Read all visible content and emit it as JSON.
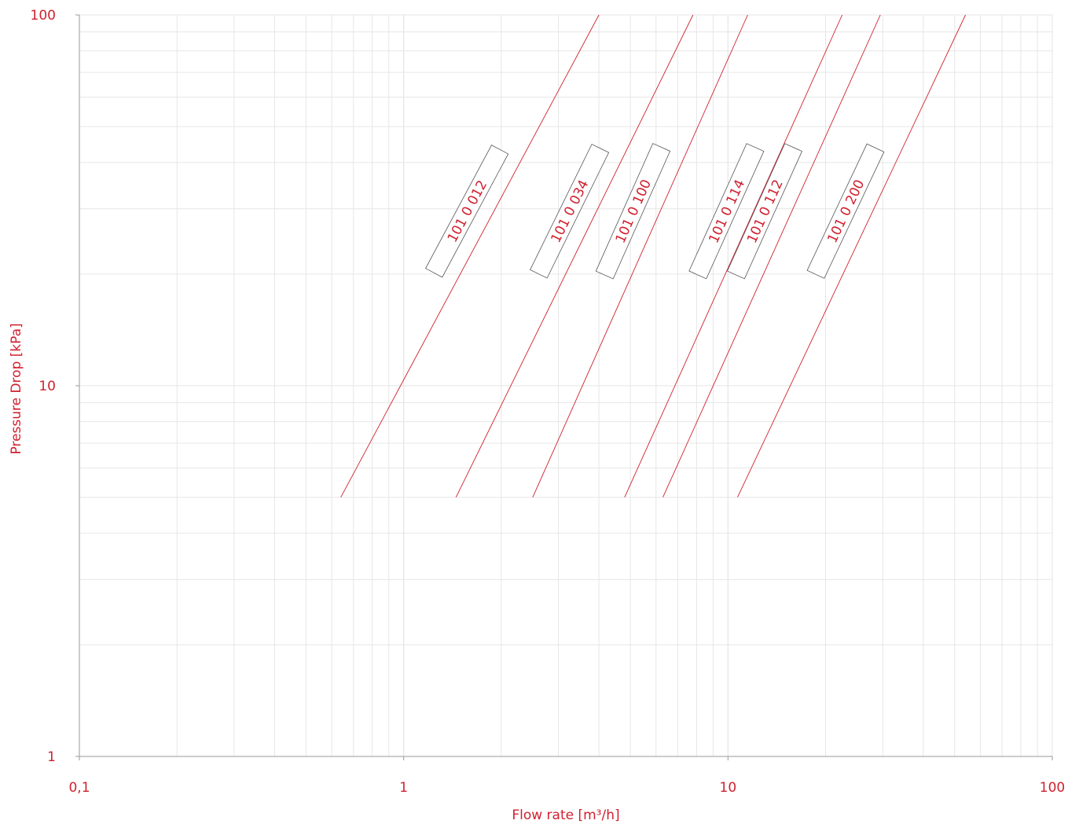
{
  "colors": {
    "accent": "#d0212f",
    "grid": "#e6e6e6",
    "axis": "#9a9a9a",
    "label_box": "#555555"
  },
  "chart_data": {
    "type": "line",
    "title": "",
    "xlabel": "Flow rate [m³/h]",
    "ylabel": "Pressure Drop [kPa]",
    "x_scale": "log",
    "y_scale": "log",
    "xlim": [
      0.1,
      100
    ],
    "ylim": [
      1,
      100
    ],
    "x_ticks": [
      {
        "value": 0.1,
        "label": "0,1"
      },
      {
        "value": 1,
        "label": "1"
      },
      {
        "value": 10,
        "label": "10"
      },
      {
        "value": 100,
        "label": "100"
      }
    ],
    "y_ticks": [
      {
        "value": 1,
        "label": "1"
      },
      {
        "value": 10,
        "label": "10"
      },
      {
        "value": 100,
        "label": "100"
      }
    ],
    "grid": true,
    "series": [
      {
        "name": "101 0 012",
        "points": [
          [
            0.64,
            5
          ],
          [
            4.0,
            100
          ]
        ]
      },
      {
        "name": "101 0 034",
        "points": [
          [
            1.45,
            5
          ],
          [
            7.8,
            100
          ]
        ]
      },
      {
        "name": "101 0 100",
        "points": [
          [
            2.5,
            5
          ],
          [
            11.5,
            100
          ]
        ]
      },
      {
        "name": "101 0 114",
        "points": [
          [
            4.8,
            5
          ],
          [
            22.5,
            100
          ]
        ]
      },
      {
        "name": "101 0 112",
        "points": [
          [
            6.3,
            5
          ],
          [
            29.5,
            100
          ]
        ]
      },
      {
        "name": "101 0 200",
        "points": [
          [
            10.7,
            5
          ],
          [
            54,
            100
          ]
        ]
      }
    ]
  }
}
